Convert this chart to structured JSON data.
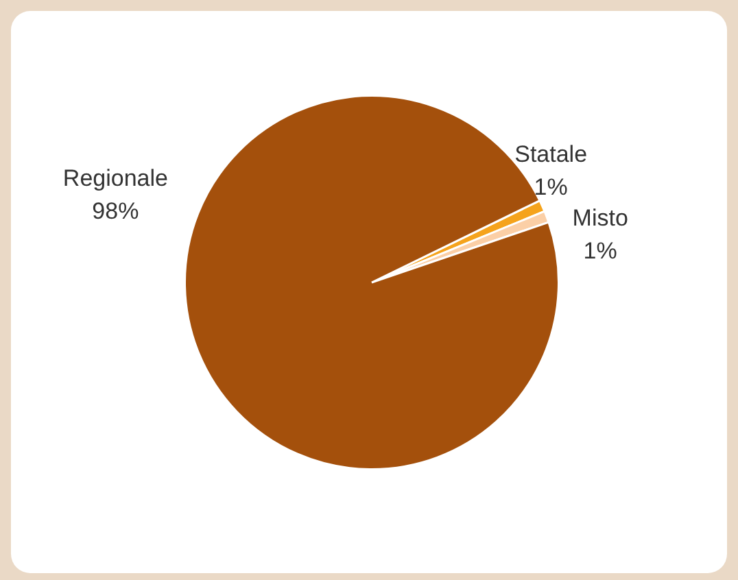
{
  "chart_data": {
    "type": "pie",
    "categories": [
      "Statale",
      "Misto",
      "Regionale"
    ],
    "values": [
      1,
      1,
      98
    ],
    "colors": [
      "#f5a31c",
      "#fbcfa6",
      "#a4500c"
    ],
    "value_labels": [
      "1%",
      "1%",
      "98%"
    ],
    "legend": false
  }
}
